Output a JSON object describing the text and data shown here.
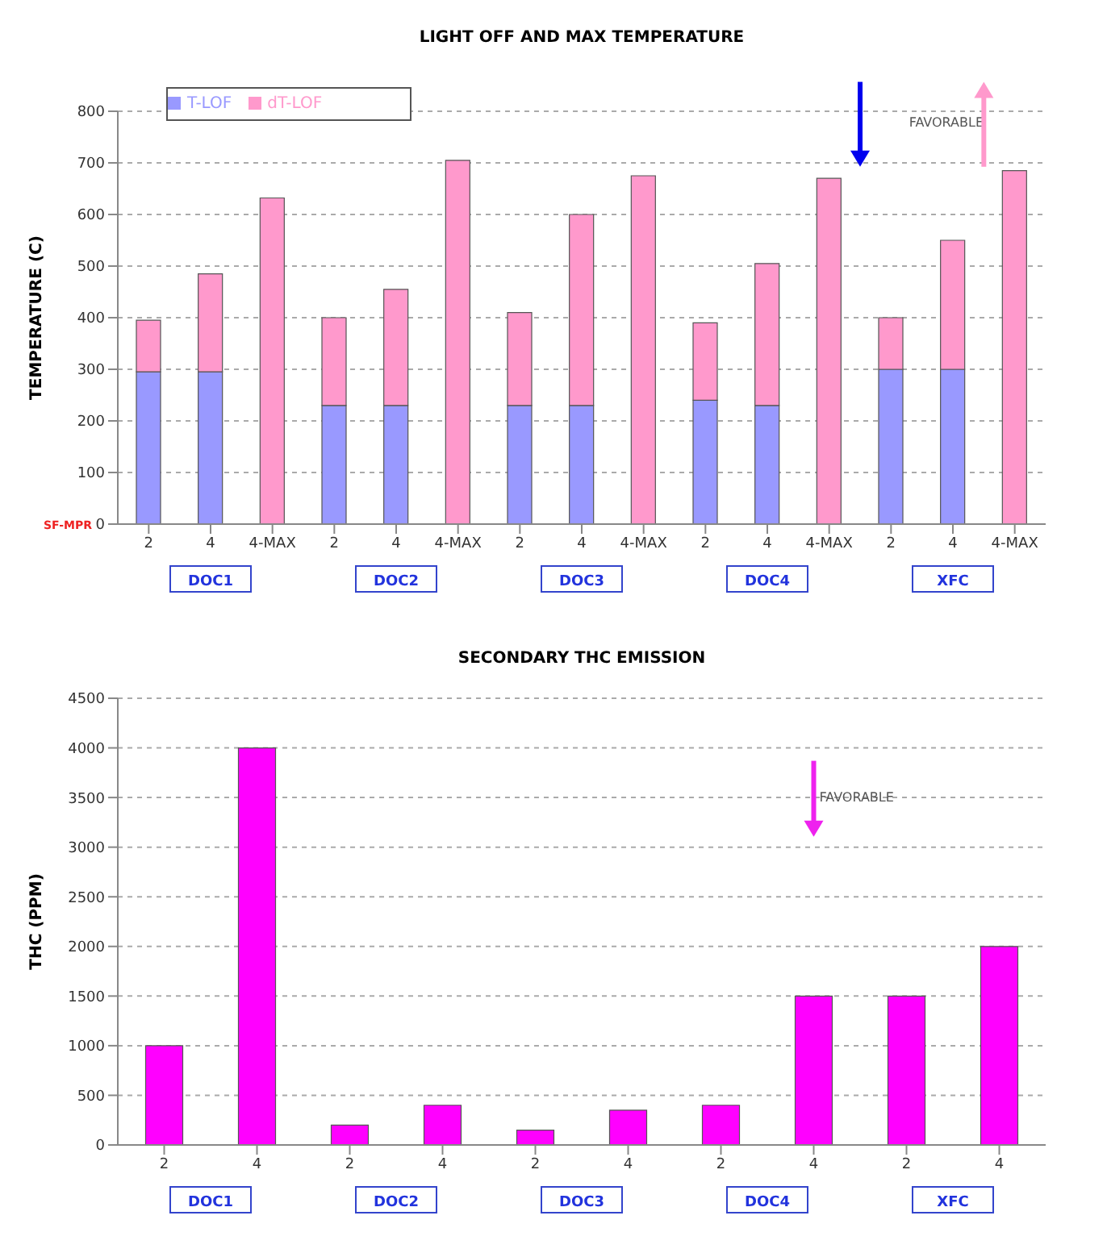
{
  "chart_data": [
    {
      "type": "bar",
      "title": "LIGHT OFF AND MAX TEMPERATURE",
      "ylabel": "TEMPERATURE (C)",
      "categories": [
        "2",
        "4",
        "4-MAX",
        "2",
        "4",
        "4-MAX",
        "2",
        "4",
        "4-MAX",
        "2",
        "4",
        "4-MAX",
        "2",
        "4",
        "4-MAX"
      ],
      "series": [
        {
          "name": "T-LOF",
          "color": "#9999ff",
          "values": [
            295,
            295,
            0,
            230,
            230,
            0,
            230,
            230,
            0,
            240,
            230,
            0,
            300,
            300,
            0
          ]
        },
        {
          "name": "dT-LOF",
          "color": "#ff99cc",
          "values": [
            100,
            190,
            632,
            170,
            225,
            705,
            180,
            370,
            675,
            150,
            275,
            670,
            100,
            250,
            685
          ]
        }
      ],
      "stacked": true,
      "ylim": [
        0,
        800
      ],
      "yticks": [
        0,
        100,
        200,
        300,
        400,
        500,
        600,
        700,
        800
      ],
      "grid": "y",
      "legend": "top left",
      "annotations": [
        "DOC1",
        "DOC2",
        "DOC3",
        "DOC4",
        "XFC",
        "FAVORABLE",
        "SF-MPR"
      ]
    },
    {
      "type": "bar",
      "title": "SECONDARY THC EMISSION",
      "ylabel": "THC (PPM)",
      "categories": [
        "2",
        "4",
        "2",
        "4",
        "2",
        "4",
        "2",
        "4",
        "2",
        "4"
      ],
      "series": [
        {
          "color": "#ff00ff",
          "values": [
            1000,
            4000,
            200,
            400,
            150,
            350,
            400,
            1500,
            1500,
            2000
          ]
        }
      ],
      "ylim": [
        0,
        4500
      ],
      "yticks": [
        0,
        500,
        1000,
        1500,
        2000,
        2500,
        3000,
        3500,
        4000,
        4500
      ],
      "grid": "y",
      "annotations": [
        "DOC1",
        "DOC2",
        "DOC3",
        "DOC4",
        "XFC",
        "FAVORABLE"
      ]
    }
  ]
}
